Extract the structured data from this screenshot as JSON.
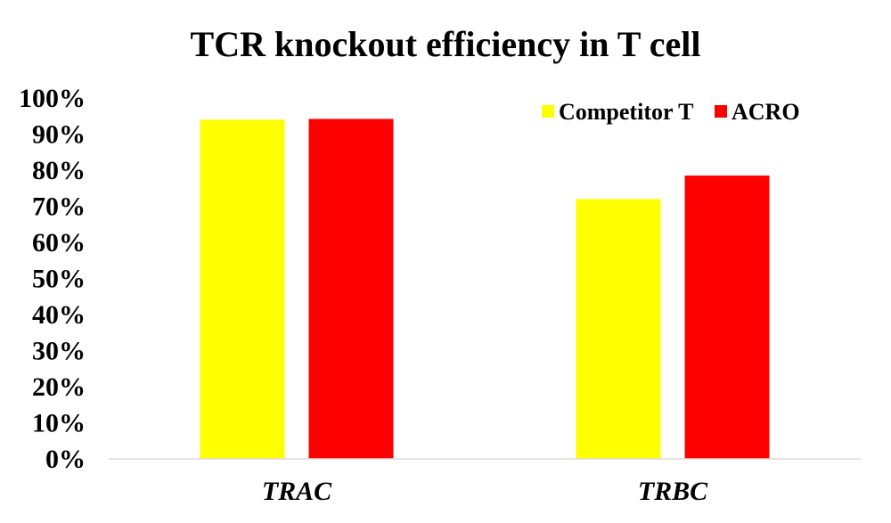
{
  "chart_data": {
    "type": "bar",
    "title": "TCR knockout  efficiency in T cell",
    "xlabel": "",
    "ylabel": "",
    "categories": [
      "TRAC",
      "TRBC"
    ],
    "series": [
      {
        "name": "Competitor T",
        "values": [
          94,
          72
        ],
        "color": "#FFFF00"
      },
      {
        "name": "ACRO",
        "values": [
          94.2,
          78.5
        ],
        "color": "#FF0000"
      }
    ],
    "ylim": [
      0,
      100
    ],
    "yticks": [
      0,
      10,
      20,
      30,
      40,
      50,
      60,
      70,
      80,
      90,
      100
    ],
    "ytick_labels": [
      "0%",
      "10%",
      "20%",
      "30%",
      "40%",
      "50%",
      "60%",
      "70%",
      "80%",
      "90%",
      "100%"
    ],
    "grid": false,
    "legend_position": "top-right",
    "category_label_style": "italic",
    "axis_color": "#D9D9D9"
  }
}
